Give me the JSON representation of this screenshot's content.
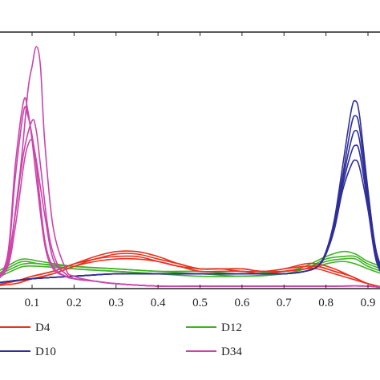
{
  "chart_data": {
    "type": "line",
    "xlim": [
      0.0,
      0.95
    ],
    "ylim": [
      0,
      1
    ],
    "grid": false,
    "legend_position": "bottom",
    "x_ticks": [
      "0.1",
      "0.2",
      "0.3",
      "0.4",
      "0.5",
      "0.6",
      "0.7",
      "0.8",
      "0.9"
    ],
    "x_tick_values": [
      0.1,
      0.2,
      0.3,
      0.4,
      0.5,
      0.6,
      0.7,
      0.8,
      0.9
    ],
    "series": [
      {
        "name": "D4",
        "color": "#e8321e",
        "curves": [
          {
            "x": [
              0.0,
              0.06,
              0.1,
              0.15,
              0.2,
              0.25,
              0.3,
              0.35,
              0.4,
              0.45,
              0.5,
              0.55,
              0.6,
              0.65,
              0.7,
              0.75,
              0.78,
              0.82,
              0.86,
              0.9,
              0.95
            ],
            "y": [
              0.01,
              0.03,
              0.05,
              0.07,
              0.1,
              0.13,
              0.15,
              0.15,
              0.13,
              0.1,
              0.08,
              0.08,
              0.08,
              0.07,
              0.08,
              0.1,
              0.1,
              0.08,
              0.05,
              0.02,
              0.0
            ]
          },
          {
            "x": [
              0.0,
              0.06,
              0.1,
              0.15,
              0.2,
              0.25,
              0.3,
              0.35,
              0.4,
              0.45,
              0.5,
              0.55,
              0.6,
              0.65,
              0.7,
              0.75,
              0.78,
              0.82,
              0.86,
              0.9,
              0.95
            ],
            "y": [
              0.01,
              0.03,
              0.05,
              0.07,
              0.1,
              0.12,
              0.14,
              0.14,
              0.12,
              0.1,
              0.08,
              0.08,
              0.08,
              0.07,
              0.08,
              0.09,
              0.09,
              0.07,
              0.05,
              0.02,
              0.0
            ]
          },
          {
            "x": [
              0.0,
              0.06,
              0.1,
              0.15,
              0.2,
              0.25,
              0.3,
              0.35,
              0.4,
              0.45,
              0.5,
              0.55,
              0.6,
              0.65,
              0.7,
              0.75,
              0.78,
              0.82,
              0.86,
              0.9,
              0.95
            ],
            "y": [
              0.01,
              0.03,
              0.04,
              0.06,
              0.09,
              0.12,
              0.13,
              0.13,
              0.11,
              0.09,
              0.08,
              0.08,
              0.07,
              0.07,
              0.07,
              0.08,
              0.09,
              0.07,
              0.05,
              0.02,
              0.0
            ]
          },
          {
            "x": [
              0.0,
              0.06,
              0.1,
              0.15,
              0.2,
              0.25,
              0.3,
              0.35,
              0.4,
              0.45,
              0.5,
              0.55,
              0.6,
              0.65,
              0.7,
              0.75,
              0.78,
              0.82,
              0.86,
              0.9,
              0.95
            ],
            "y": [
              0.01,
              0.02,
              0.04,
              0.06,
              0.09,
              0.11,
              0.12,
              0.12,
              0.11,
              0.09,
              0.07,
              0.07,
              0.07,
              0.06,
              0.07,
              0.08,
              0.08,
              0.06,
              0.04,
              0.02,
              0.0
            ]
          }
        ]
      },
      {
        "name": "D10",
        "color": "#2f2f9a",
        "curves": [
          {
            "x": [
              0.0,
              0.1,
              0.2,
              0.3,
              0.4,
              0.5,
              0.6,
              0.7,
              0.75,
              0.78,
              0.8,
              0.82,
              0.84,
              0.86,
              0.87,
              0.88,
              0.9,
              0.92,
              0.95
            ],
            "y": [
              0.02,
              0.04,
              0.05,
              0.06,
              0.06,
              0.06,
              0.06,
              0.06,
              0.07,
              0.09,
              0.15,
              0.28,
              0.5,
              0.72,
              0.76,
              0.7,
              0.4,
              0.15,
              0.02
            ]
          },
          {
            "x": [
              0.0,
              0.1,
              0.2,
              0.3,
              0.4,
              0.5,
              0.6,
              0.7,
              0.75,
              0.78,
              0.8,
              0.82,
              0.84,
              0.86,
              0.87,
              0.88,
              0.9,
              0.92,
              0.95
            ],
            "y": [
              0.02,
              0.04,
              0.05,
              0.06,
              0.06,
              0.06,
              0.06,
              0.06,
              0.07,
              0.09,
              0.15,
              0.27,
              0.46,
              0.66,
              0.7,
              0.65,
              0.38,
              0.14,
              0.02
            ]
          },
          {
            "x": [
              0.0,
              0.1,
              0.2,
              0.3,
              0.4,
              0.5,
              0.6,
              0.7,
              0.75,
              0.78,
              0.8,
              0.82,
              0.84,
              0.86,
              0.87,
              0.88,
              0.9,
              0.92,
              0.95
            ],
            "y": [
              0.02,
              0.04,
              0.05,
              0.06,
              0.06,
              0.06,
              0.06,
              0.06,
              0.07,
              0.09,
              0.14,
              0.26,
              0.44,
              0.6,
              0.64,
              0.6,
              0.36,
              0.13,
              0.02
            ]
          },
          {
            "x": [
              0.0,
              0.1,
              0.2,
              0.3,
              0.4,
              0.5,
              0.6,
              0.7,
              0.75,
              0.78,
              0.8,
              0.82,
              0.84,
              0.86,
              0.87,
              0.88,
              0.9,
              0.92,
              0.95
            ],
            "y": [
              0.02,
              0.04,
              0.05,
              0.06,
              0.06,
              0.06,
              0.06,
              0.06,
              0.07,
              0.09,
              0.14,
              0.25,
              0.42,
              0.55,
              0.58,
              0.55,
              0.34,
              0.12,
              0.02
            ]
          },
          {
            "x": [
              0.0,
              0.1,
              0.2,
              0.3,
              0.4,
              0.5,
              0.6,
              0.7,
              0.75,
              0.78,
              0.8,
              0.82,
              0.84,
              0.86,
              0.87,
              0.88,
              0.9,
              0.92,
              0.95
            ],
            "y": [
              0.02,
              0.04,
              0.05,
              0.06,
              0.06,
              0.06,
              0.06,
              0.06,
              0.07,
              0.09,
              0.14,
              0.24,
              0.4,
              0.5,
              0.52,
              0.49,
              0.32,
              0.11,
              0.02
            ]
          }
        ]
      },
      {
        "name": "D12",
        "color": "#3fb224",
        "curves": [
          {
            "x": [
              0.0,
              0.05,
              0.08,
              0.12,
              0.2,
              0.3,
              0.4,
              0.5,
              0.6,
              0.7,
              0.75,
              0.8,
              0.84,
              0.87,
              0.9,
              0.95
            ],
            "y": [
              0.05,
              0.1,
              0.12,
              0.11,
              0.09,
              0.08,
              0.07,
              0.07,
              0.06,
              0.07,
              0.09,
              0.13,
              0.15,
              0.14,
              0.11,
              0.08
            ]
          },
          {
            "x": [
              0.0,
              0.05,
              0.08,
              0.12,
              0.2,
              0.3,
              0.4,
              0.5,
              0.6,
              0.7,
              0.75,
              0.8,
              0.84,
              0.87,
              0.9,
              0.95
            ],
            "y": [
              0.04,
              0.09,
              0.11,
              0.1,
              0.09,
              0.08,
              0.07,
              0.06,
              0.06,
              0.07,
              0.08,
              0.12,
              0.13,
              0.13,
              0.1,
              0.07
            ]
          },
          {
            "x": [
              0.0,
              0.05,
              0.08,
              0.12,
              0.2,
              0.3,
              0.4,
              0.5,
              0.6,
              0.7,
              0.75,
              0.8,
              0.84,
              0.87,
              0.9,
              0.95
            ],
            "y": [
              0.04,
              0.08,
              0.1,
              0.1,
              0.08,
              0.07,
              0.06,
              0.06,
              0.05,
              0.06,
              0.08,
              0.11,
              0.12,
              0.12,
              0.09,
              0.06
            ]
          },
          {
            "x": [
              0.0,
              0.05,
              0.08,
              0.12,
              0.2,
              0.3,
              0.4,
              0.5,
              0.6,
              0.7,
              0.75,
              0.8,
              0.84,
              0.87,
              0.9,
              0.95
            ],
            "y": [
              0.03,
              0.07,
              0.09,
              0.09,
              0.08,
              0.07,
              0.06,
              0.05,
              0.05,
              0.06,
              0.07,
              0.1,
              0.11,
              0.1,
              0.08,
              0.05
            ]
          }
        ]
      },
      {
        "name": "D34",
        "color": "#cc44aa",
        "curves": [
          {
            "x": [
              0.0,
              0.04,
              0.07,
              0.09,
              0.1,
              0.11,
              0.12,
              0.13,
              0.15,
              0.18,
              0.2,
              0.25,
              0.3,
              0.4,
              0.5,
              0.6,
              0.7,
              0.8,
              0.9,
              0.95
            ],
            "y": [
              0.02,
              0.1,
              0.45,
              0.8,
              0.9,
              0.98,
              0.9,
              0.6,
              0.25,
              0.08,
              0.05,
              0.03,
              0.02,
              0.01,
              0.01,
              0.01,
              0.01,
              0.01,
              0.01,
              0.0
            ]
          },
          {
            "x": [
              0.0,
              0.04,
              0.06,
              0.08,
              0.09,
              0.1,
              0.11,
              0.13,
              0.15,
              0.18,
              0.2,
              0.25,
              0.3,
              0.4,
              0.5,
              0.6,
              0.7,
              0.8,
              0.9,
              0.95
            ],
            "y": [
              0.02,
              0.12,
              0.5,
              0.76,
              0.72,
              0.6,
              0.45,
              0.18,
              0.08,
              0.05,
              0.04,
              0.03,
              0.02,
              0.01,
              0.01,
              0.01,
              0.01,
              0.01,
              0.01,
              0.0
            ]
          },
          {
            "x": [
              0.0,
              0.04,
              0.06,
              0.08,
              0.09,
              0.1,
              0.11,
              0.13,
              0.15,
              0.18,
              0.2,
              0.25,
              0.3,
              0.4,
              0.5,
              0.6,
              0.7,
              0.8,
              0.9,
              0.95
            ],
            "y": [
              0.02,
              0.11,
              0.45,
              0.72,
              0.7,
              0.62,
              0.5,
              0.2,
              0.09,
              0.05,
              0.04,
              0.03,
              0.02,
              0.01,
              0.01,
              0.01,
              0.01,
              0.01,
              0.01,
              0.0
            ]
          },
          {
            "x": [
              0.0,
              0.04,
              0.06,
              0.08,
              0.1,
              0.11,
              0.12,
              0.14,
              0.16,
              0.18,
              0.2,
              0.25,
              0.3,
              0.4,
              0.5,
              0.6,
              0.7,
              0.8,
              0.9,
              0.95
            ],
            "y": [
              0.02,
              0.09,
              0.3,
              0.55,
              0.68,
              0.64,
              0.5,
              0.22,
              0.1,
              0.06,
              0.04,
              0.03,
              0.02,
              0.01,
              0.01,
              0.01,
              0.01,
              0.01,
              0.01,
              0.0
            ]
          },
          {
            "x": [
              0.0,
              0.04,
              0.06,
              0.08,
              0.09,
              0.1,
              0.11,
              0.13,
              0.15,
              0.18,
              0.2,
              0.25,
              0.3,
              0.4,
              0.5,
              0.6,
              0.7,
              0.8,
              0.9,
              0.95
            ],
            "y": [
              0.02,
              0.08,
              0.25,
              0.5,
              0.58,
              0.6,
              0.52,
              0.3,
              0.12,
              0.06,
              0.04,
              0.03,
              0.02,
              0.01,
              0.01,
              0.01,
              0.01,
              0.01,
              0.01,
              0.0
            ]
          }
        ]
      }
    ]
  }
}
